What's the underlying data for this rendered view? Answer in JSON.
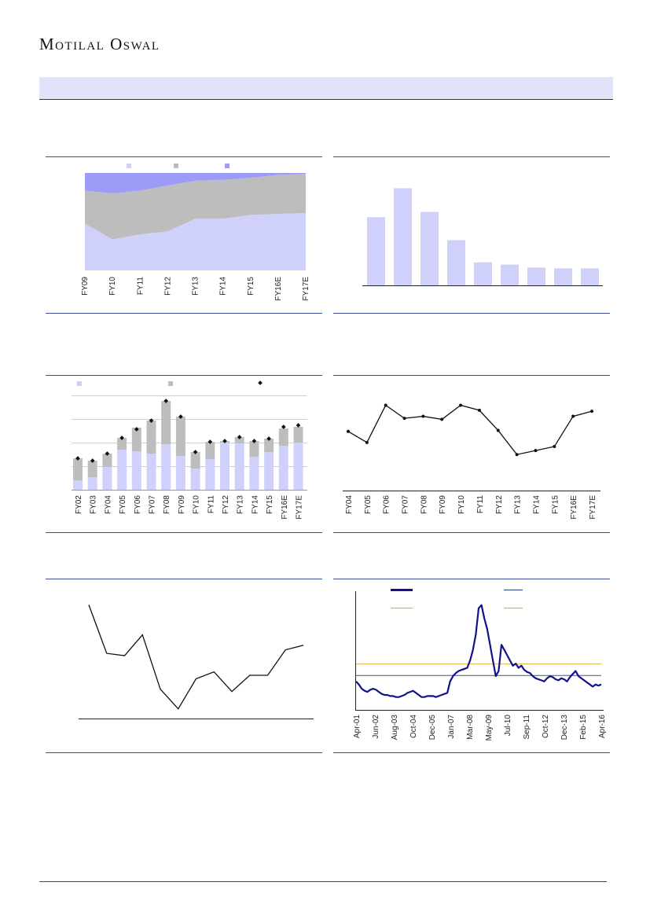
{
  "header": {
    "brand": "Motilal Oswal"
  },
  "colors": {
    "lavender": "#cfd1fb",
    "grey": "#bdbdbd",
    "blue": "#9c9cf8",
    "navy": "#12128a",
    "gold": "#e0b040",
    "line": "#3b4fa0"
  },
  "chart_data": [
    {
      "id": "share-area",
      "type": "area",
      "categories": [
        "FY09",
        "FY10",
        "FY11",
        "FY12",
        "FY13",
        "FY14",
        "FY15",
        "FY16E",
        "FY17E"
      ],
      "series": [
        {
          "values": [
            48,
            32,
            37,
            40,
            53,
            53,
            57,
            58,
            59
          ]
        },
        {
          "values": [
            34,
            47,
            45,
            47,
            39,
            40,
            38,
            40,
            40
          ]
        },
        {
          "values": [
            18,
            21,
            18,
            13,
            8,
            7,
            5,
            2,
            1
          ]
        }
      ],
      "ylim": [
        0,
        100
      ],
      "legend": "top"
    },
    {
      "id": "bars-declining",
      "type": "bar",
      "values": [
        92,
        131,
        99,
        61,
        31,
        28,
        24,
        23,
        23
      ],
      "ylim": [
        0,
        140
      ]
    },
    {
      "id": "stacked-bars",
      "type": "bar",
      "categories": [
        "FY02",
        "FY03",
        "FY04",
        "FY05",
        "FY06",
        "FY07",
        "FY08",
        "FY09",
        "FY10",
        "FY11",
        "FY12",
        "FY13",
        "FY14",
        "FY15",
        "FY16E",
        "FY17E"
      ],
      "series": [
        {
          "values": [
            12,
            16,
            29,
            51,
            49,
            46,
            58,
            43,
            27,
            39,
            60,
            59,
            42,
            48,
            56,
            60
          ]
        },
        {
          "values": [
            28,
            21,
            17,
            15,
            30,
            42,
            55,
            50,
            21,
            22,
            2,
            8,
            20,
            17,
            22,
            20
          ]
        },
        {
          "values": [
            40,
            37,
            46,
            66,
            77,
            88,
            113,
            93,
            48,
            61,
            62,
            67,
            62,
            65,
            80,
            82
          ]
        }
      ],
      "ylim": [
        0,
        120
      ],
      "legend": "top"
    },
    {
      "id": "line-fy04",
      "type": "line",
      "categories": [
        "FY04",
        "FY05",
        "FY06",
        "FY07",
        "FY08",
        "FY09",
        "FY10",
        "FY11",
        "FY12",
        "FY13",
        "FY14",
        "FY15",
        "FY16E",
        "FY17E"
      ],
      "values": [
        58,
        47,
        84,
        71,
        73,
        70,
        84,
        79,
        59,
        35,
        39,
        43,
        73,
        78
      ],
      "ylim": [
        0,
        100
      ]
    },
    {
      "id": "line-plain",
      "type": "line",
      "values": [
        95,
        53,
        51,
        69,
        22,
        5,
        31,
        37,
        20,
        34,
        34,
        56,
        60
      ],
      "ylim": [
        0,
        100
      ]
    },
    {
      "id": "long-run",
      "type": "line",
      "x_labels": [
        "Apr-01",
        "Jun-02",
        "Aug-03",
        "Oct-04",
        "Dec-05",
        "Jan-07",
        "Mar-08",
        "May-09",
        "Jul-10",
        "Sep-11",
        "Oct-12",
        "Dec-13",
        "Feb-15",
        "Apr-16"
      ],
      "ylim": [
        0,
        100
      ],
      "reference_lines": [
        {
          "value": 31,
          "color": "#3b5a7a"
        },
        {
          "value": 42,
          "color": "#e0b040"
        }
      ],
      "values": [
        25,
        22,
        18,
        16,
        15,
        17,
        18,
        17,
        15,
        13,
        12,
        12,
        11,
        11,
        10,
        10,
        11,
        12,
        14,
        15,
        16,
        14,
        12,
        10,
        10,
        11,
        11,
        11,
        10,
        11,
        12,
        13,
        14,
        25,
        30,
        33,
        35,
        36,
        37,
        38,
        45,
        55,
        70,
        95,
        98,
        85,
        75,
        60,
        45,
        30,
        35,
        60,
        55,
        50,
        45,
        40,
        42,
        38,
        40,
        36,
        34,
        33,
        30,
        28,
        27,
        26,
        25,
        28,
        30,
        29,
        27,
        26,
        28,
        27,
        25,
        29,
        32,
        35,
        30,
        28,
        26,
        24,
        22,
        20,
        22,
        21,
        22
      ]
    }
  ]
}
